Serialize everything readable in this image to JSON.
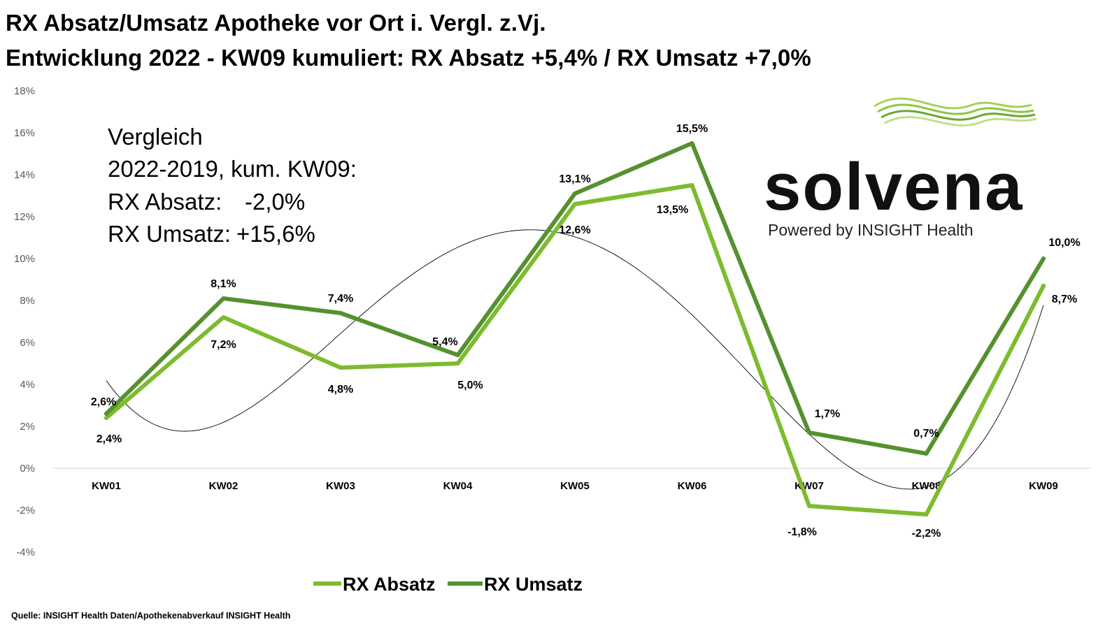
{
  "header": {
    "title_line1": "RX Absatz/Umsatz Apotheke vor Ort i. Vergl. z.Vj.",
    "title_line2": "Entwicklung 2022 - KW09 kumuliert: RX Absatz +5,4% / RX Umsatz +7,0%"
  },
  "comparison_box": {
    "line1": "Vergleich",
    "line2": "2022-2019, kum. KW09:",
    "line3_label": "RX Absatz:",
    "line3_value": "-2,0%",
    "line4_label": "RX Umsatz:",
    "line4_value": "+15,6%"
  },
  "logo": {
    "brand": "solvena",
    "tagline": "Powered by INSIGHT Health",
    "wave_color": "#8dc63f"
  },
  "source": "Quelle: INSIGHT Health Daten/Apothekenabverkauf INSIGHT Health",
  "chart_data": {
    "type": "line",
    "title": "RX Absatz/Umsatz Apotheke vor Ort i. Vergl. z.Vj.",
    "subtitle": "Entwicklung 2022 - KW09 kumuliert: RX Absatz +5,4% / RX Umsatz +7,0%",
    "xlabel": "",
    "ylabel": "",
    "categories": [
      "KW01",
      "KW02",
      "KW03",
      "KW04",
      "KW05",
      "KW06",
      "KW07",
      "KW08",
      "KW09"
    ],
    "ylim": [
      -4,
      18
    ],
    "yticks": [
      -4,
      -2,
      0,
      2,
      4,
      6,
      8,
      10,
      12,
      14,
      16,
      18
    ],
    "ytick_labels": [
      "-4%",
      "-2%",
      "0%",
      "2%",
      "4%",
      "6%",
      "8%",
      "10%",
      "12%",
      "14%",
      "16%",
      "18%"
    ],
    "grid": false,
    "legend": "bottom",
    "series": [
      {
        "name": "RX Absatz",
        "color": "#7dbb2f",
        "values": [
          2.4,
          7.2,
          4.8,
          5.0,
          12.6,
          13.5,
          -1.8,
          -2.2,
          8.7
        ],
        "labels": [
          "2,4%",
          "7,2%",
          "4,8%",
          "5,0%",
          "12,6%",
          "13,5%",
          "-1,8%",
          "-2,2%",
          "8,7%"
        ]
      },
      {
        "name": "RX Umsatz",
        "color": "#55912e",
        "values": [
          2.6,
          8.1,
          7.4,
          5.4,
          13.1,
          15.5,
          1.7,
          0.7,
          10.0
        ],
        "labels": [
          "2,6%",
          "8,1%",
          "7,4%",
          "5,4%",
          "13,1%",
          "15,5%",
          "1,7%",
          "0,7%",
          "10,0%"
        ]
      }
    ],
    "trendline": {
      "name": "Polynomial trend",
      "color": "#000000"
    }
  }
}
